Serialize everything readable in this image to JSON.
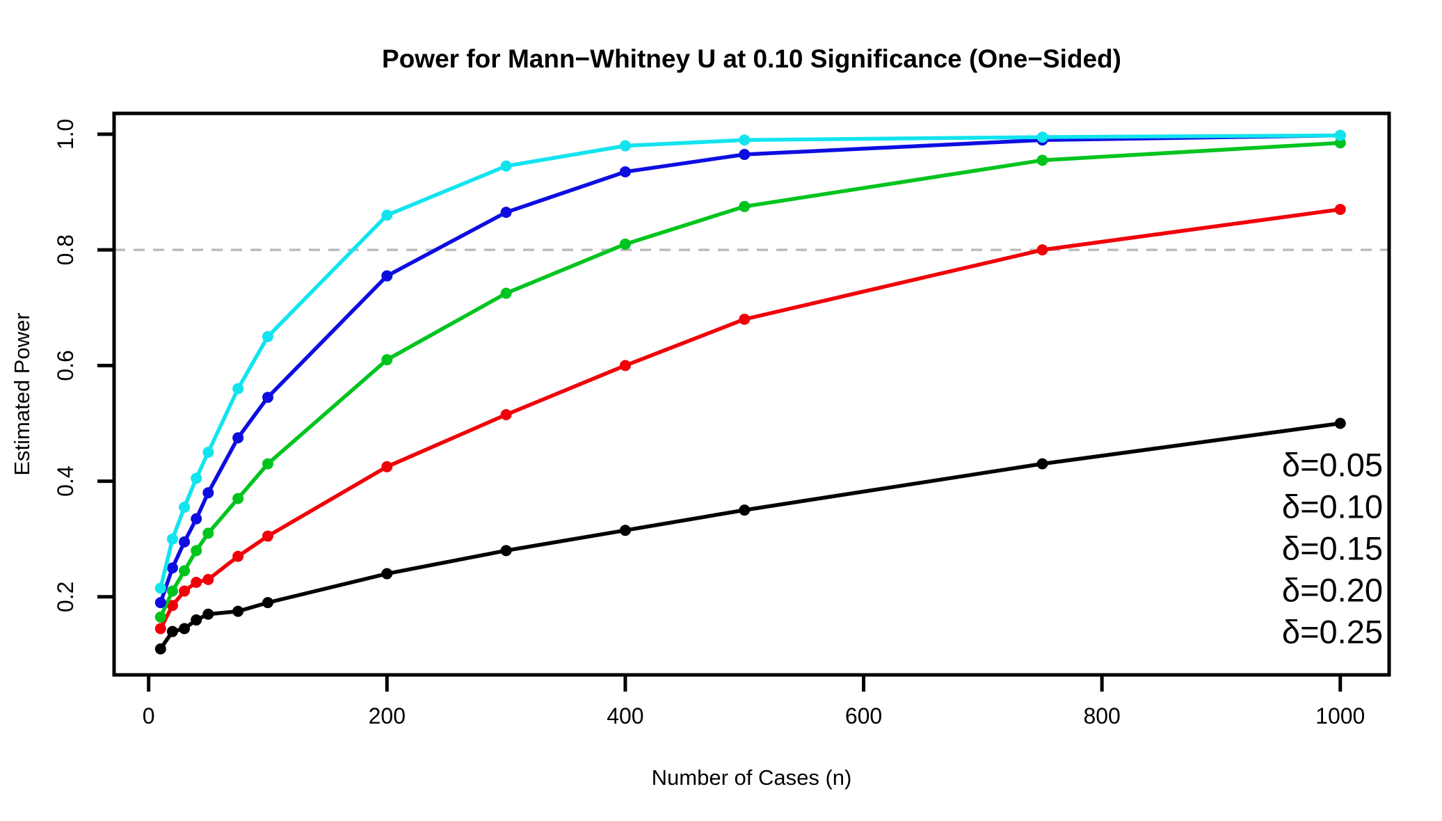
{
  "title": "Power for Mann−Whitney U at 0.10 Significance (One−Sided)",
  "chart_data": {
    "type": "line",
    "title": "Power for Mann−Whitney U at 0.10 Significance (One−Sided)",
    "xlabel": "Number of Cases (n)",
    "ylabel": "Estimated Power",
    "x": [
      10,
      20,
      30,
      40,
      50,
      75,
      100,
      200,
      300,
      400,
      500,
      750,
      1000
    ],
    "series": [
      {
        "name": "δ=0.05",
        "color": "#000000",
        "values": [
          0.11,
          0.14,
          0.145,
          0.16,
          0.17,
          0.175,
          0.19,
          0.24,
          0.28,
          0.315,
          0.35,
          0.43,
          0.5
        ]
      },
      {
        "name": "δ=0.10",
        "color": "#f00008",
        "values": [
          0.145,
          0.185,
          0.21,
          0.225,
          0.23,
          0.27,
          0.305,
          0.425,
          0.515,
          0.6,
          0.68,
          0.8,
          0.87
        ]
      },
      {
        "name": "δ=0.15",
        "color": "#00c41e",
        "values": [
          0.165,
          0.21,
          0.245,
          0.28,
          0.31,
          0.37,
          0.43,
          0.61,
          0.725,
          0.81,
          0.875,
          0.955,
          0.985
        ]
      },
      {
        "name": "δ=0.20",
        "color": "#0d0de0",
        "values": [
          0.19,
          0.25,
          0.295,
          0.335,
          0.38,
          0.475,
          0.545,
          0.755,
          0.865,
          0.935,
          0.965,
          0.99,
          0.998
        ]
      },
      {
        "name": "δ=0.25",
        "color": "#12e4ee",
        "values": [
          0.215,
          0.3,
          0.355,
          0.405,
          0.45,
          0.56,
          0.65,
          0.86,
          0.945,
          0.98,
          0.99,
          0.995,
          0.998
        ]
      }
    ],
    "x_ticks": [
      0,
      200,
      400,
      600,
      800,
      1000
    ],
    "y_ticks": [
      0.2,
      0.4,
      0.6,
      0.8,
      1.0
    ],
    "xlim": [
      -29,
      1041
    ],
    "ylim": [
      0.065,
      1.036
    ],
    "reference_line": {
      "y": 0.8,
      "style": "dashed",
      "color": "#bcbcbc"
    },
    "legend_position": "bottom-right",
    "grid": false
  }
}
